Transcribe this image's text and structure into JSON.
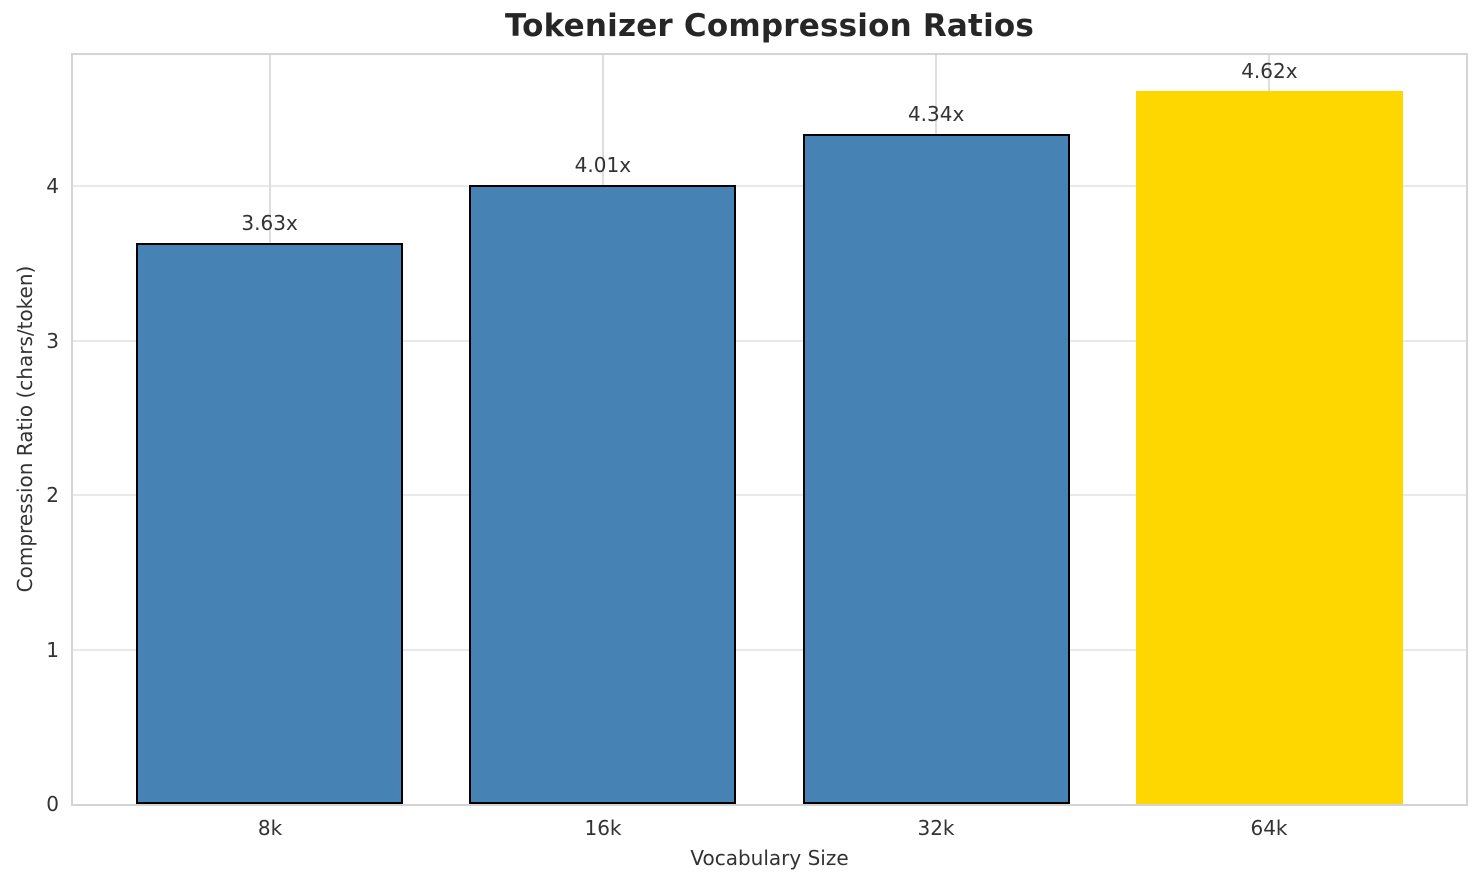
{
  "chart_data": {
    "type": "bar",
    "title": "Tokenizer Compression Ratios",
    "xlabel": "Vocabulary Size",
    "ylabel": "Compression Ratio (chars/token)",
    "categories": [
      "8k",
      "16k",
      "32k",
      "64k"
    ],
    "values": [
      3.63,
      4.01,
      4.34,
      4.62
    ],
    "bar_labels": [
      "3.63x",
      "4.01x",
      "4.34x",
      "4.62x"
    ],
    "bar_colors": [
      "#4682B4",
      "#4682B4",
      "#4682B4",
      "#FFD700"
    ],
    "bar_edge_colors": [
      "#000000",
      "#000000",
      "#000000",
      "none"
    ],
    "highlighted_category": "64k",
    "yticks": [
      "0",
      "1",
      "2",
      "3",
      "4"
    ],
    "ylim": [
      0,
      4.85
    ],
    "grid": "horizontal and vertical light-gray gridlines behind bars",
    "legend_position": "none",
    "colors": {
      "bar_default": "#4682B4",
      "bar_highlight": "#FFD700",
      "bar_edge": "#000000",
      "grid": "#e2e2e2",
      "spine": "#d4d4d4",
      "title_text": "#262626",
      "tick_text": "#333333",
      "background": "#ffffff"
    }
  }
}
